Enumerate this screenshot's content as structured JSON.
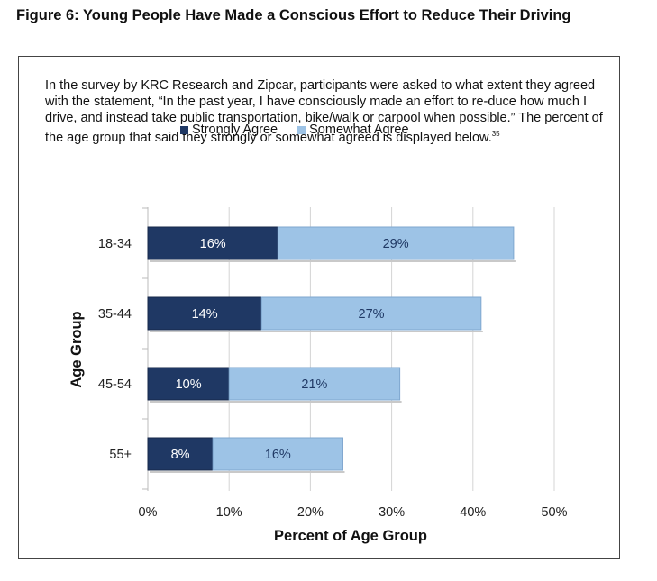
{
  "figure": {
    "title": "Figure 6: Young People Have Made a Conscious Effort to Reduce Their Driving",
    "intro": "In the survey by KRC Research and Zipcar, participants were asked to what extent they agreed with the statement, “In the past year, I have consciously made an effort to re-duce how much I drive, and instead take public transportation, bike/walk or carpool when possible.” The percent of the age group that said they strongly or somewhat agreed is displayed below.",
    "footnote_ref": "35"
  },
  "chart_data": {
    "type": "bar",
    "orientation": "horizontal",
    "stacked": true,
    "categories": [
      "18-34",
      "35-44",
      "45-54",
      "55+"
    ],
    "series": [
      {
        "name": "Strongly  Agree",
        "values": [
          16,
          14,
          10,
          8
        ],
        "labels": [
          "16%",
          "14%",
          "10%",
          "8%"
        ],
        "color": "#1f3864",
        "label_color": "#ffffff"
      },
      {
        "name": "Somewhat Agree",
        "values": [
          29,
          27,
          21,
          16
        ],
        "labels": [
          "29%",
          "27%",
          "21%",
          "16%"
        ],
        "color": "#9dc3e6",
        "label_color": "#1f3864"
      }
    ],
    "xlim": [
      0,
      50
    ],
    "xticks": [
      "0%",
      "10%",
      "20%",
      "30%",
      "40%",
      "50%"
    ],
    "xlabel": "Percent of Age Group",
    "ylabel": "Age Group",
    "grid": true,
    "legend_position": "top"
  }
}
